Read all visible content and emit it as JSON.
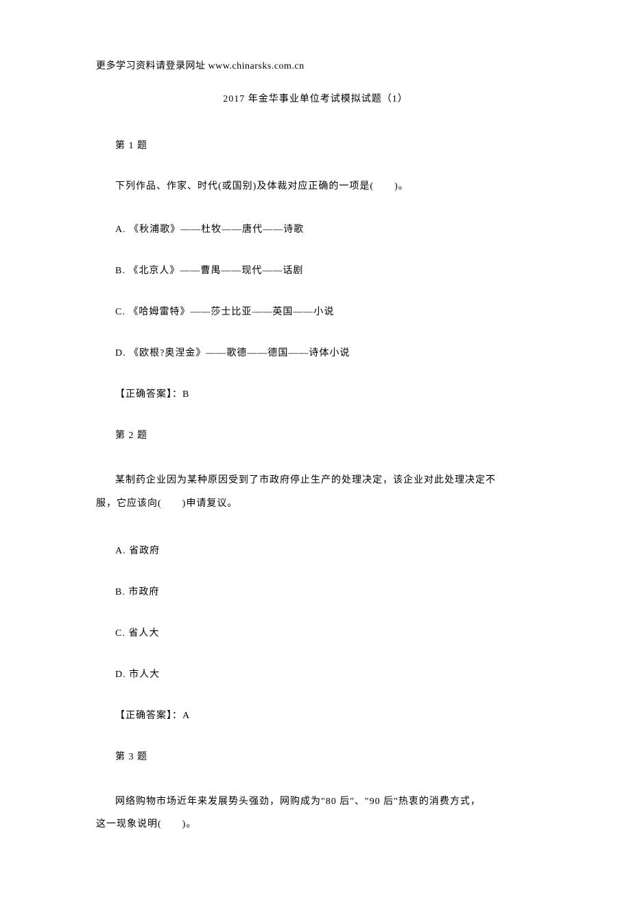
{
  "header": "更多学习资料请登录网址 www.chinarsks.com.cn",
  "title": "2017 年金华事业单位考试模拟试题（1）",
  "questions": [
    {
      "number": "第 1 题",
      "text": "下列作品、作家、时代(或国别)及体裁对应正确的一项是(　　)。",
      "multiline": false,
      "options": [
        "A.  《秋浦歌》——杜牧——唐代——诗歌",
        "B.  《北京人》——曹禺——现代——话剧",
        "C.  《哈姆雷特》——莎士比亚——英国——小说",
        "D.  《欧根?奥涅金》——歌德——德国——诗体小说"
      ],
      "answer": "【正确答案】：B"
    },
    {
      "number": "第 2 题",
      "text_line1": "某制药企业因为某种原因受到了市政府停止生产的处理决定，该企业对此处理决定不",
      "text_line2": "服，它应该向(　　)申请复议。",
      "multiline": true,
      "options": [
        "A.  省政府",
        "B.  市政府",
        "C.  省人大",
        "D.  市人大"
      ],
      "answer": "【正确答案】：A"
    },
    {
      "number": "第 3 题",
      "text_line1": "网络购物市场近年来发展势头强劲，网购成为\"80 后\"、\"90 后\"热衷的消费方式，",
      "text_line2": "这一现象说明(　　)。",
      "multiline": true,
      "options": [],
      "answer": ""
    }
  ]
}
